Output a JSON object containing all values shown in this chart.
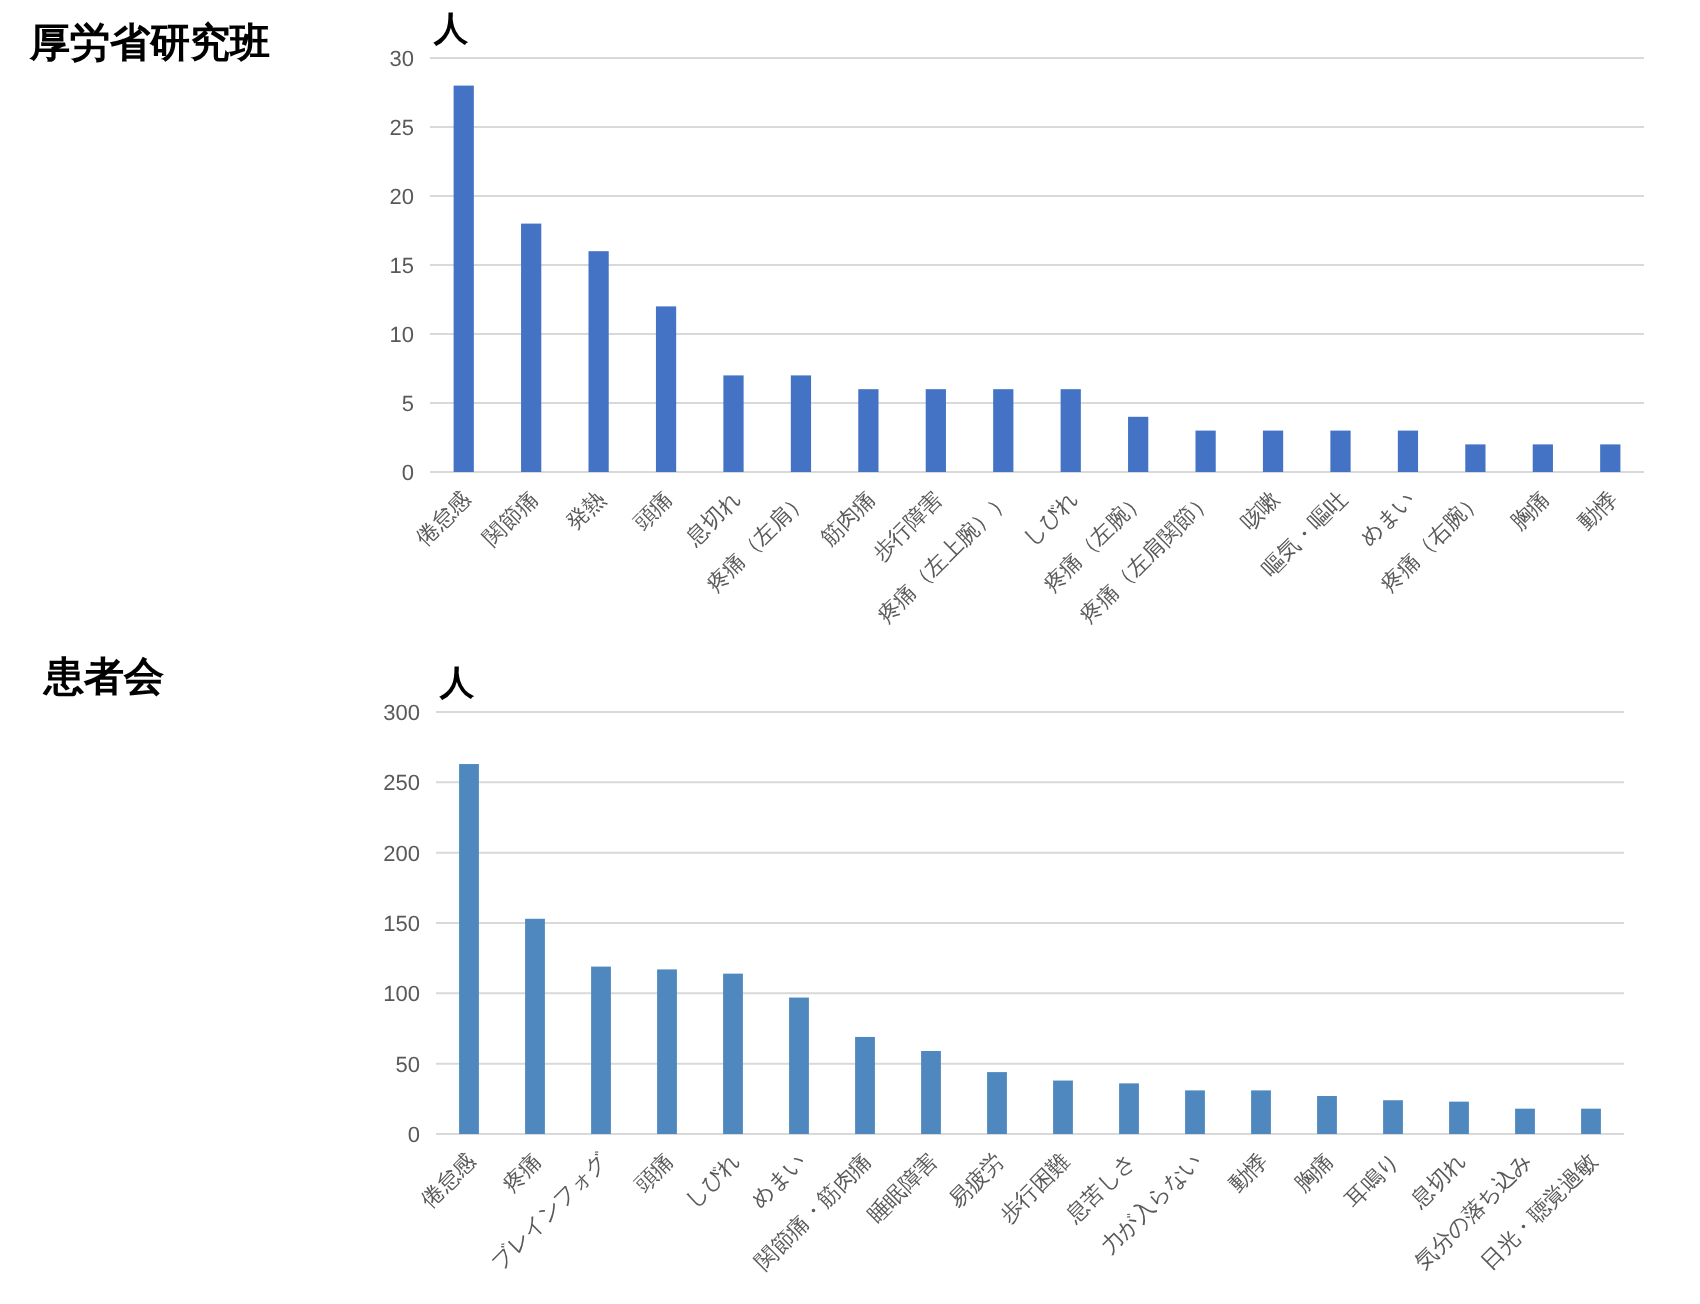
{
  "chart_data": [
    {
      "type": "bar",
      "title": "厚労省研究班",
      "ylabel": "人",
      "categories": [
        "倦怠感",
        "関節痛",
        "発熱",
        "頭痛",
        "息切れ",
        "疼痛（左肩）",
        "筋肉痛",
        "歩行障害",
        "疼痛（左上腕））",
        "しびれ",
        "疼痛（左腕）",
        "疼痛（左肩関節）",
        "咳嗽",
        "嘔気・嘔吐",
        "めまい",
        "疼痛（右腕）",
        "胸痛",
        "動悸"
      ],
      "series": [
        {
          "color": "#4472c4",
          "values": [
            28,
            18,
            16,
            12,
            7,
            7,
            6,
            6,
            6,
            6,
            4,
            3,
            3,
            3,
            3,
            2,
            2,
            2
          ]
        }
      ],
      "ylim": [
        0,
        30
      ],
      "yticks": [
        0,
        5,
        10,
        15,
        20,
        25,
        30
      ],
      "grid": "y"
    },
    {
      "type": "bar",
      "title": "患者会",
      "ylabel": "人",
      "categories": [
        "倦怠感",
        "疼痛",
        "ブレインフォグ",
        "頭痛",
        "しびれ",
        "めまい",
        "関節痛・筋肉痛",
        "睡眠障害",
        "易疲労",
        "歩行困難",
        "息苦しさ",
        "力が入らない",
        "動悸",
        "胸痛",
        "耳鳴り",
        "息切れ",
        "気分の落ち込み",
        "日光・聴覚過敏"
      ],
      "series": [
        {
          "color": "#4f88bf",
          "values": [
            263,
            153,
            119,
            117,
            114,
            97,
            69,
            59,
            44,
            38,
            36,
            31,
            31,
            27,
            24,
            23,
            18,
            18
          ]
        }
      ],
      "ylim": [
        0,
        300
      ],
      "yticks": [
        0,
        50,
        100,
        150,
        200,
        250,
        300
      ],
      "grid": "y"
    }
  ]
}
